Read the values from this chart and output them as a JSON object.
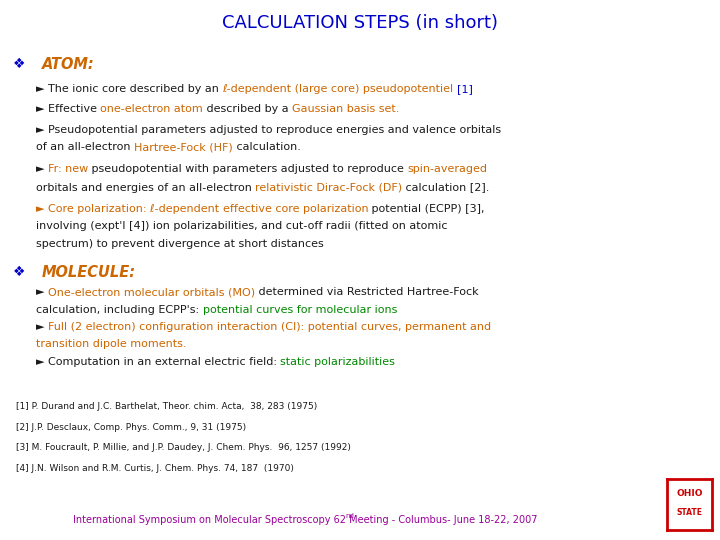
{
  "title": "CALCULATION STEPS (in short)",
  "title_color": "#0000CC",
  "bg_color": "#FFFFFF",
  "footer_text": "International Symposium on Molecular Spectroscopy 62",
  "footer_text2": "nd",
  "footer_text3": " Meeting - Columbus- June 18-22, 2007",
  "footer_color": "#990099",
  "refs": [
    "[1] P. Durand and J.C. Barthelat, Theor. chim. Acta,  38, 283 (1975)",
    "[2] J.P. Desclaux, Comp. Phys. Comm., 9, 31 (1975)",
    "[3] M. Foucrault, P. Millie, and J.P. Daudey, J. Chem. Phys.  96, 1257 (1992)",
    "[4] J.N. Wilson and R.M. Curtis, J. Chem. Phys. 74, 187  (1970)"
  ],
  "blue": "#0000CC",
  "orange": "#CC6600",
  "green": "#008800",
  "black": "#1A1A1A",
  "purple": "#990099",
  "red": "#CC0000"
}
